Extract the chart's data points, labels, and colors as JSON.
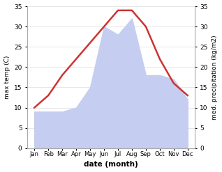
{
  "months": [
    "Jan",
    "Feb",
    "Mar",
    "Apr",
    "May",
    "Jun",
    "Jul",
    "Aug",
    "Sep",
    "Oct",
    "Nov",
    "Dec"
  ],
  "temp": [
    10,
    13,
    18,
    22,
    26,
    30,
    34,
    34,
    30,
    22,
    16,
    13
  ],
  "precip": [
    9,
    9,
    9,
    10,
    15,
    30,
    28,
    32,
    18,
    18,
    17,
    12
  ],
  "temp_color": "#cc3333",
  "precip_color": "#c5cef0",
  "background_color": "#ffffff",
  "ylabel_left": "max temp (C)",
  "ylabel_right": "med. precipitation (kg/m2)",
  "xlabel": "date (month)",
  "ylim": [
    0,
    35
  ],
  "temp_linewidth": 1.8,
  "grid_color": "#dddddd"
}
